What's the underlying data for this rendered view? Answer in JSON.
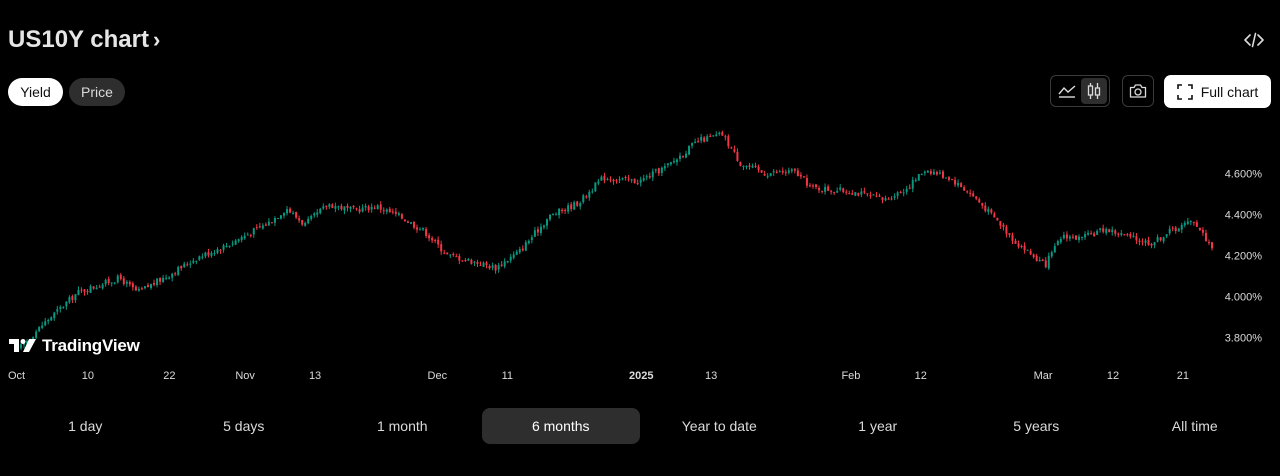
{
  "header": {
    "title": "US10Y chart",
    "chevron": "›",
    "embed_icon": "code-icon"
  },
  "toggle": {
    "yield_label": "Yield",
    "price_label": "Price",
    "selected": "Yield"
  },
  "toolbar": {
    "area_icon": "area-chart-icon",
    "candle_icon": "candles-icon",
    "camera_icon": "camera-icon",
    "full_chart_label": "Full chart",
    "fullscreen_icon": "fullscreen-icon"
  },
  "brand": {
    "name": "TradingView",
    "logo_icon": "tradingview-logo-icon"
  },
  "ranges": [
    "1 day",
    "5 days",
    "1 month",
    "6 months",
    "Year to date",
    "1 year",
    "5 years",
    "All time"
  ],
  "selected_range": "6 months",
  "colors": {
    "up": "#089981",
    "down": "#f23645",
    "background": "#000000",
    "axis_text": "#dbdbdb"
  },
  "chart_data": {
    "type": "candlestick",
    "title": "US10Y",
    "y_unit": "%",
    "ylim": [
      3.7,
      4.87
    ],
    "y_ticks": [
      "4.600%",
      "4.400%",
      "4.200%",
      "4.000%",
      "3.800%"
    ],
    "y_tick_values": [
      4.6,
      4.4,
      4.2,
      4.0,
      3.8
    ],
    "x_ticks": [
      {
        "label": "Oct",
        "t": 0.0,
        "bold": false
      },
      {
        "label": "10",
        "t": 0.0585,
        "bold": false
      },
      {
        "label": "22",
        "t": 0.1268,
        "bold": false
      },
      {
        "label": "Nov",
        "t": 0.1902,
        "bold": false
      },
      {
        "label": "13",
        "t": 0.2488,
        "bold": false
      },
      {
        "label": "Dec",
        "t": 0.3512,
        "bold": false
      },
      {
        "label": "11",
        "t": 0.4098,
        "bold": false
      },
      {
        "label": "2025",
        "t": 0.522,
        "bold": true
      },
      {
        "label": "13",
        "t": 0.5805,
        "bold": false
      },
      {
        "label": "Feb",
        "t": 0.6976,
        "bold": false
      },
      {
        "label": "12",
        "t": 0.7561,
        "bold": false
      },
      {
        "label": "Mar",
        "t": 0.8585,
        "bold": false
      },
      {
        "label": "12",
        "t": 0.9171,
        "bold": false
      },
      {
        "label": "21",
        "t": 0.9756,
        "bold": false
      }
    ],
    "trend": [
      [
        0.0,
        3.74
      ],
      [
        0.02,
        3.86
      ],
      [
        0.05,
        4.02
      ],
      [
        0.085,
        4.09
      ],
      [
        0.1,
        4.02
      ],
      [
        0.125,
        4.1
      ],
      [
        0.15,
        4.19
      ],
      [
        0.175,
        4.25
      ],
      [
        0.21,
        4.36
      ],
      [
        0.225,
        4.43
      ],
      [
        0.24,
        4.35
      ],
      [
        0.26,
        4.45
      ],
      [
        0.28,
        4.42
      ],
      [
        0.3,
        4.44
      ],
      [
        0.32,
        4.39
      ],
      [
        0.34,
        4.32
      ],
      [
        0.36,
        4.2
      ],
      [
        0.375,
        4.18
      ],
      [
        0.4,
        4.14
      ],
      [
        0.42,
        4.22
      ],
      [
        0.445,
        4.39
      ],
      [
        0.47,
        4.46
      ],
      [
        0.49,
        4.58
      ],
      [
        0.52,
        4.56
      ],
      [
        0.545,
        4.64
      ],
      [
        0.57,
        4.76
      ],
      [
        0.59,
        4.79
      ],
      [
        0.605,
        4.65
      ],
      [
        0.625,
        4.6
      ],
      [
        0.65,
        4.61
      ],
      [
        0.665,
        4.53
      ],
      [
        0.7,
        4.51
      ],
      [
        0.725,
        4.47
      ],
      [
        0.745,
        4.53
      ],
      [
        0.76,
        4.62
      ],
      [
        0.78,
        4.58
      ],
      [
        0.8,
        4.49
      ],
      [
        0.82,
        4.37
      ],
      [
        0.835,
        4.27
      ],
      [
        0.86,
        4.15
      ],
      [
        0.875,
        4.3
      ],
      [
        0.89,
        4.28
      ],
      [
        0.91,
        4.33
      ],
      [
        0.935,
        4.28
      ],
      [
        0.95,
        4.26
      ],
      [
        0.965,
        4.32
      ],
      [
        0.985,
        4.37
      ],
      [
        0.995,
        4.28
      ],
      [
        1.0,
        4.24
      ]
    ],
    "last_value": 4.24
  }
}
